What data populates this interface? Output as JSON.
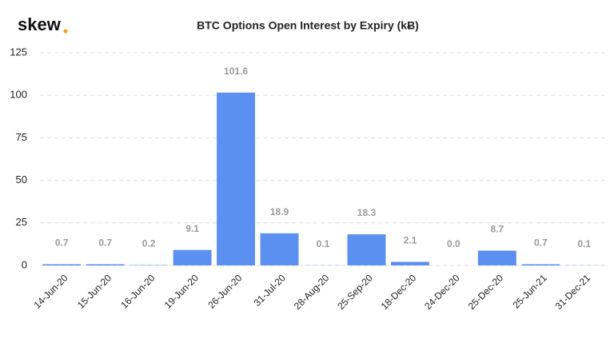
{
  "logo": "skew",
  "chart_data": {
    "type": "bar",
    "title": "BTC Options Open Interest by Expiry (kɃ)",
    "categories": [
      "14-Jun-20",
      "15-Jun-20",
      "16-Jun-20",
      "19-Jun-20",
      "26-Jun-20",
      "31-Jul-20",
      "28-Aug-20",
      "25-Sep-20",
      "18-Dec-20",
      "24-Dec-20",
      "25-Dec-20",
      "25-Jun-21",
      "31-Dec-21"
    ],
    "values": [
      0.7,
      0.7,
      0.2,
      9.1,
      101.6,
      18.9,
      0.1,
      18.3,
      2.1,
      0.0,
      8.7,
      0.7,
      0.1
    ],
    "value_labels": [
      "0.7",
      "0.7",
      "0.2",
      "9.1",
      "101.6",
      "18.9",
      "0.1",
      "18.3",
      "2.1",
      "0.0",
      "8.7",
      "0.7",
      "0.1"
    ],
    "color": "#5b8ff0",
    "ylim": [
      0,
      125
    ],
    "yticks": [
      0,
      25,
      50,
      75,
      100,
      125
    ],
    "grid": true
  }
}
